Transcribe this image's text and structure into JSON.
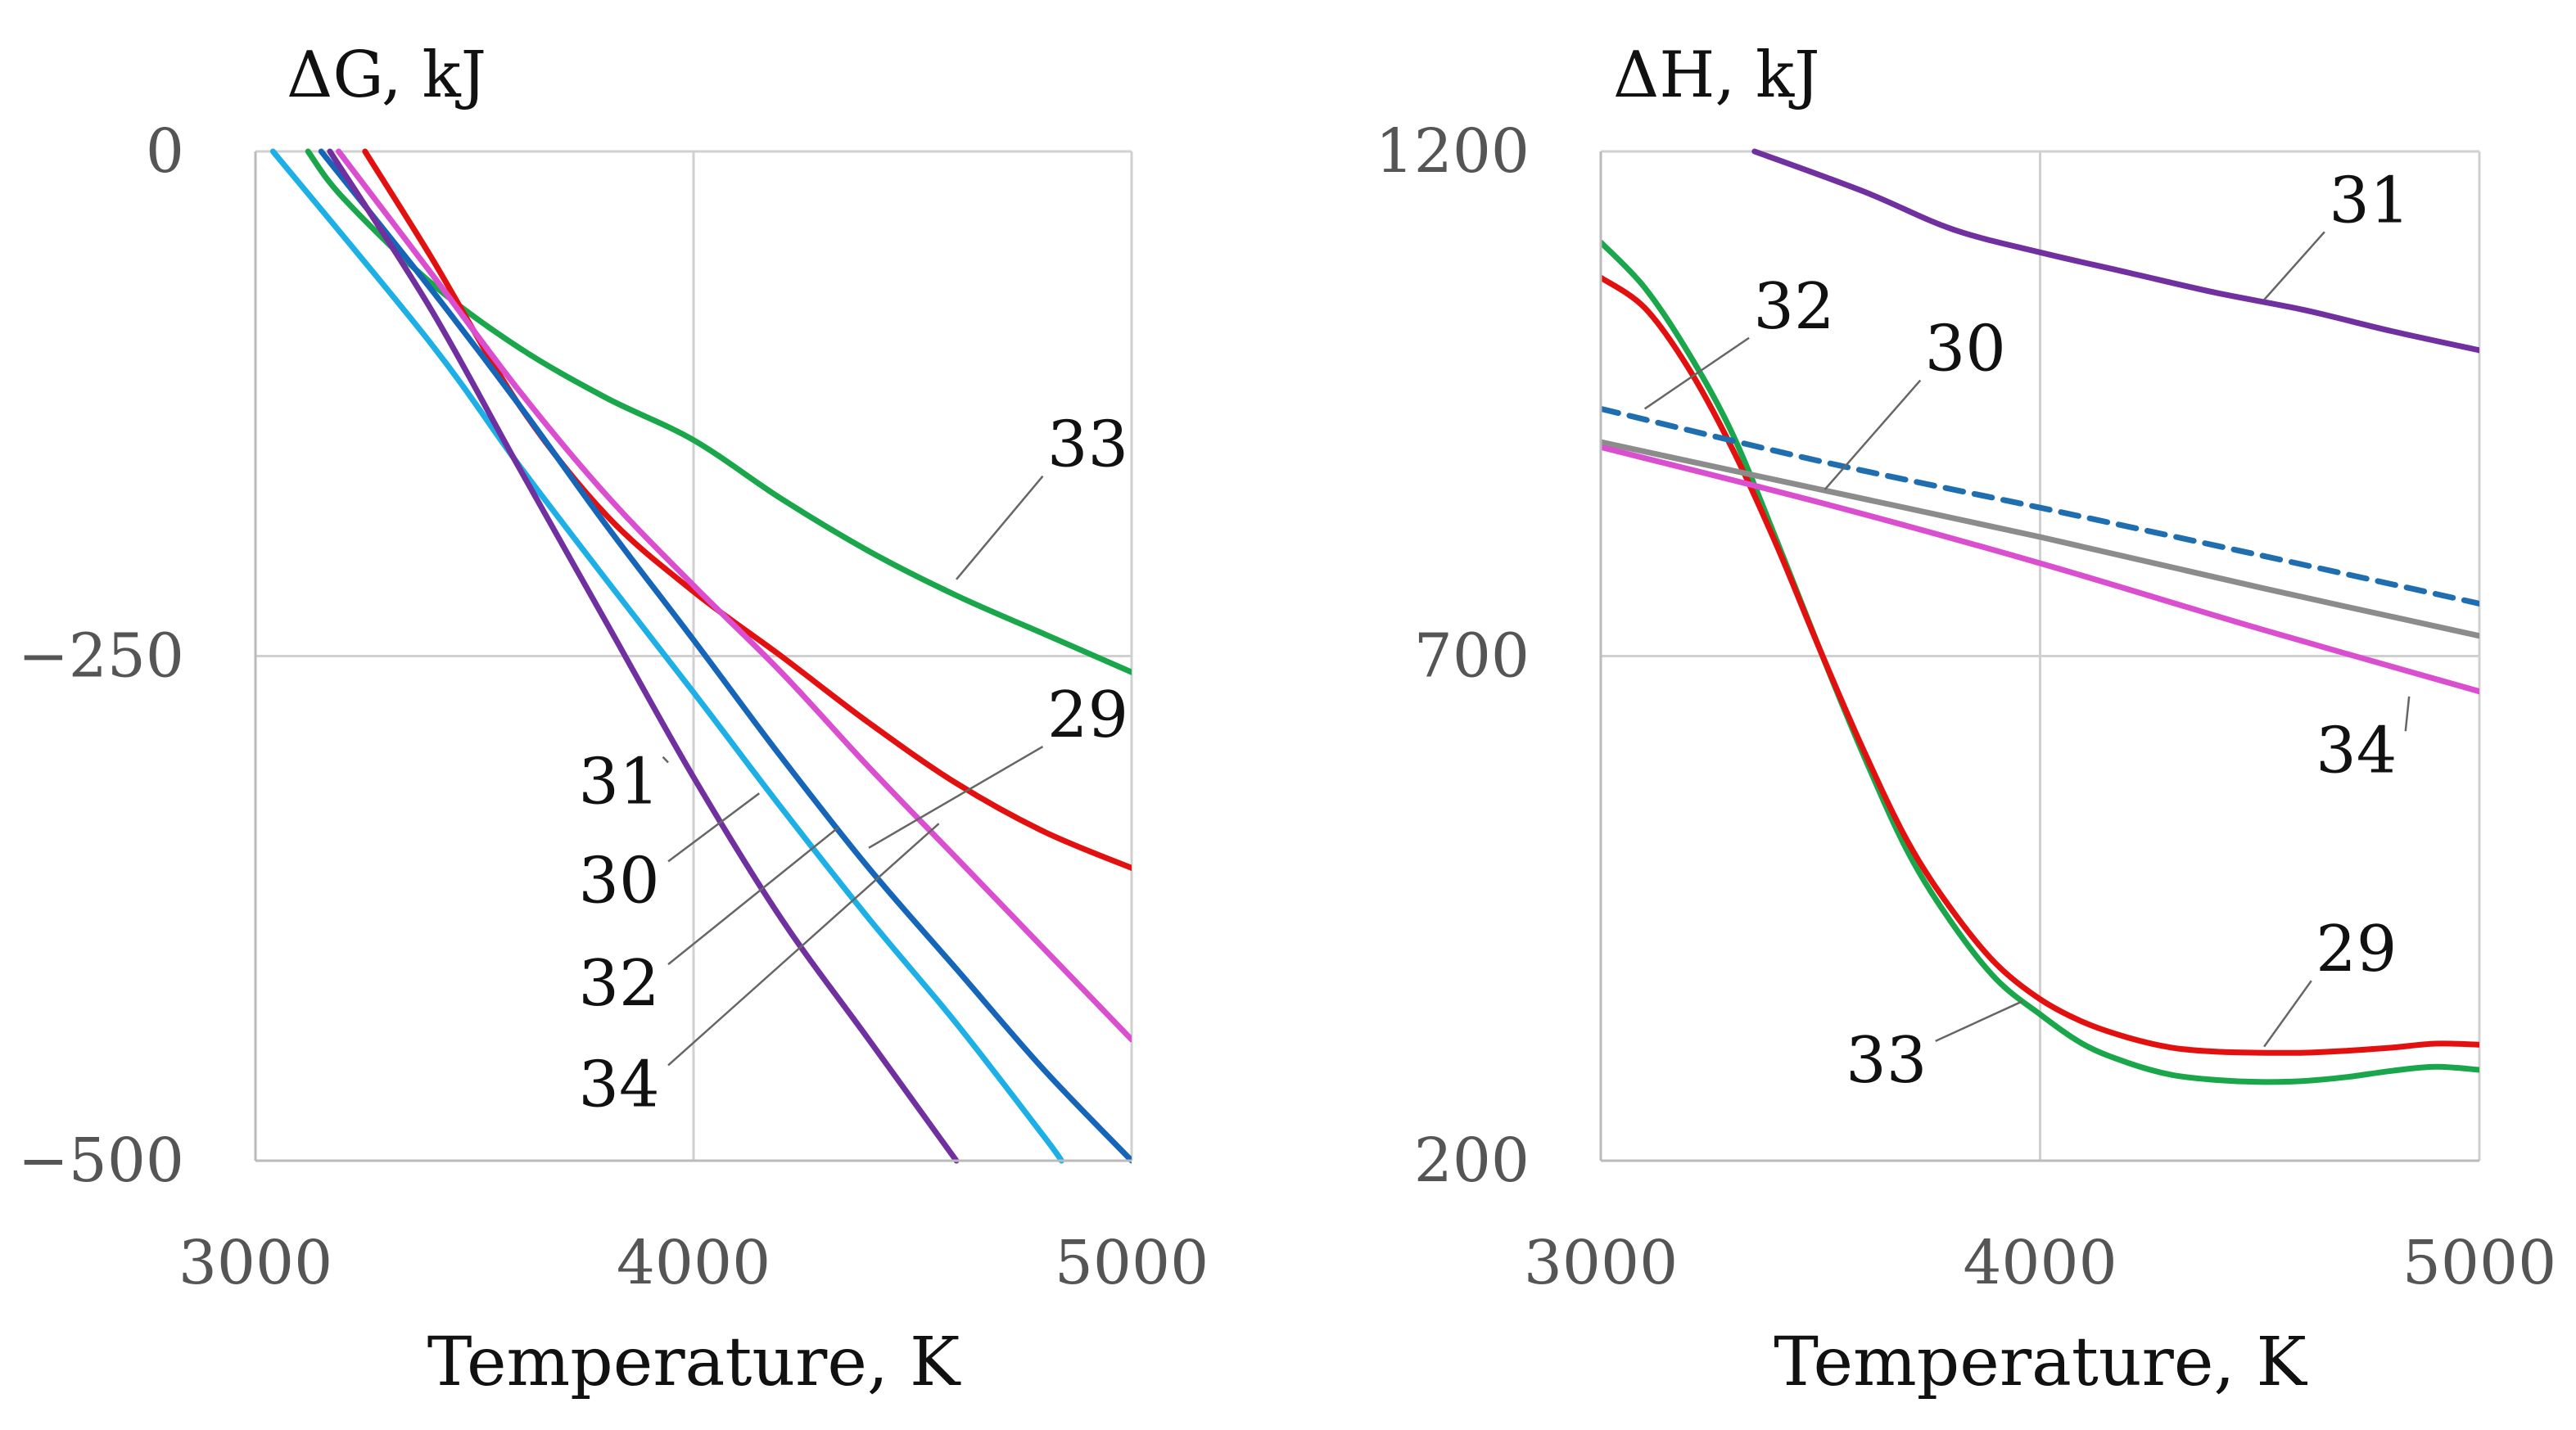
{
  "chart_data": [
    {
      "type": "line",
      "title": "ΔG, kJ",
      "xlabel": "Temperature, K",
      "ylabel": "ΔG, kJ",
      "xlim": [
        3000,
        5000
      ],
      "ylim": [
        -500,
        0
      ],
      "xticks": [
        3000,
        4000,
        5000
      ],
      "xtick_labels": [
        "3000",
        "4000",
        "5000"
      ],
      "yticks": [
        0,
        -250,
        -500
      ],
      "ytick_labels": [
        "0",
        "−250",
        "−500"
      ],
      "grid": true,
      "series": [
        {
          "name": "33",
          "color": "#1aa64a",
          "dashed": false,
          "x": [
            3120,
            3200,
            3400,
            3600,
            3800,
            4000,
            4200,
            4400,
            4600,
            4800,
            5000
          ],
          "y": [
            0,
            -23,
            -65,
            -97,
            -122,
            -143,
            -172,
            -198,
            -220,
            -239,
            -258
          ]
        },
        {
          "name": "29",
          "color": "#e31010",
          "dashed": false,
          "x": [
            3250,
            3400,
            3600,
            3800,
            4000,
            4200,
            4400,
            4600,
            4800,
            5000
          ],
          "y": [
            0,
            -52,
            -125,
            -180,
            -218,
            -250,
            -283,
            -313,
            -337,
            -355
          ]
        },
        {
          "name": "34",
          "color": "#d94fd0",
          "dashed": false,
          "x": [
            3190,
            3400,
            3600,
            3800,
            4000,
            4200,
            4400,
            4600,
            4800,
            5000
          ],
          "y": [
            0,
            -60,
            -118,
            -170,
            -215,
            -258,
            -305,
            -350,
            -395,
            -440
          ]
        },
        {
          "name": "32",
          "color": "#1565b8",
          "dashed": false,
          "x": [
            3150,
            3400,
            3600,
            3800,
            4000,
            4200,
            4400,
            4600,
            4800,
            5000
          ],
          "y": [
            0,
            -68,
            -125,
            -185,
            -242,
            -300,
            -355,
            -405,
            -455,
            -500
          ]
        },
        {
          "name": "30",
          "color": "#1cb0e6",
          "dashed": false,
          "x": [
            3040,
            3400,
            3600,
            3800,
            4000,
            4200,
            4400,
            4600,
            4800,
            4840
          ],
          "y": [
            0,
            -95,
            -155,
            -212,
            -268,
            -325,
            -380,
            -432,
            -488,
            -500
          ]
        },
        {
          "name": "31",
          "color": "#7030a0",
          "dashed": false,
          "x": [
            3170,
            3400,
            3600,
            3800,
            4000,
            4200,
            4400,
            4600
          ],
          "y": [
            0,
            -78,
            -156,
            -233,
            -310,
            -380,
            -440,
            -500
          ]
        }
      ],
      "labels": [
        {
          "text": "33",
          "x": 4900,
          "y": -156,
          "anchor_x": 4600,
          "anchor_y": -212
        },
        {
          "text": "29",
          "x": 4900,
          "y": -290,
          "anchor_x": 4400,
          "anchor_y": -345
        },
        {
          "text": "31",
          "x": 3830,
          "y": -323,
          "anchor_x": 3930,
          "anchor_y": -300
        },
        {
          "text": "30",
          "x": 3830,
          "y": -372,
          "anchor_x": 4150,
          "anchor_y": -318
        },
        {
          "text": "32",
          "x": 3830,
          "y": -423,
          "anchor_x": 4330,
          "anchor_y": -335
        },
        {
          "text": "34",
          "x": 3830,
          "y": -473,
          "anchor_x": 4560,
          "anchor_y": -333
        }
      ]
    },
    {
      "type": "line",
      "title": "ΔH, kJ",
      "xlabel": "Temperature, K",
      "ylabel": "ΔH, kJ",
      "xlim": [
        3000,
        5000
      ],
      "ylim": [
        200,
        1200
      ],
      "xticks": [
        3000,
        4000,
        5000
      ],
      "xtick_labels": [
        "3000",
        "4000",
        "5000"
      ],
      "yticks": [
        1200,
        700,
        200
      ],
      "ytick_labels": [
        "1200",
        "700",
        "200"
      ],
      "grid": true,
      "series": [
        {
          "name": "31",
          "color": "#7030a0",
          "dashed": false,
          "x": [
            3350,
            3600,
            3800,
            4000,
            4200,
            4400,
            4600,
            4800,
            5000
          ],
          "y": [
            1200,
            1160,
            1123,
            1100,
            1080,
            1060,
            1043,
            1022,
            1003
          ]
        },
        {
          "name": "33",
          "color": "#1aa64a",
          "dashed": false,
          "x": [
            3000,
            3100,
            3200,
            3300,
            3400,
            3500,
            3600,
            3700,
            3800,
            3900,
            4000,
            4100,
            4200,
            4300,
            4400,
            4500,
            4600,
            4700,
            4800,
            4900,
            5000
          ],
          "y": [
            1110,
            1065,
            1000,
            920,
            815,
            705,
            600,
            505,
            435,
            380,
            345,
            315,
            297,
            285,
            280,
            278,
            279,
            283,
            289,
            293,
            290
          ]
        },
        {
          "name": "29",
          "color": "#e31010",
          "dashed": false,
          "x": [
            3000,
            3100,
            3200,
            3300,
            3400,
            3500,
            3600,
            3700,
            3800,
            3900,
            4000,
            4100,
            4200,
            4300,
            4400,
            4500,
            4600,
            4700,
            4800,
            4900,
            5000
          ],
          "y": [
            1075,
            1045,
            985,
            905,
            810,
            705,
            605,
            515,
            448,
            395,
            360,
            337,
            322,
            312,
            308,
            307,
            307,
            309,
            312,
            316,
            315
          ]
        },
        {
          "name": "32",
          "color": "#1f6fb0",
          "dashed": true,
          "x": [
            3000,
            3500,
            4000,
            4500,
            5000
          ],
          "y": [
            945,
            893,
            847,
            800,
            752
          ]
        },
        {
          "name": "30",
          "color": "#8c8c8c",
          "dashed": false,
          "x": [
            3000,
            3500,
            4000,
            4500,
            5000
          ],
          "y": [
            912,
            865,
            818,
            768,
            720
          ]
        },
        {
          "name": "34",
          "color": "#d94fd0",
          "dashed": false,
          "x": [
            3000,
            3500,
            4000,
            4500,
            5000
          ],
          "y": [
            907,
            852,
            792,
            727,
            665
          ]
        }
      ],
      "labels": [
        {
          "text": "31",
          "x": 4750,
          "y": 1130,
          "anchor_x": 4510,
          "anchor_y": 1053
        },
        {
          "text": "32",
          "x": 3440,
          "y": 1025,
          "anchor_x": 3100,
          "anchor_y": 945
        },
        {
          "text": "30",
          "x": 3830,
          "y": 983,
          "anchor_x": 3510,
          "anchor_y": 865
        },
        {
          "text": "34",
          "x": 4720,
          "y": 585,
          "anchor_x": 4840,
          "anchor_y": 660
        },
        {
          "text": "29",
          "x": 4720,
          "y": 388,
          "anchor_x": 4510,
          "anchor_y": 313
        },
        {
          "text": "33",
          "x": 3650,
          "y": 278,
          "anchor_x": 3960,
          "anchor_y": 358
        }
      ]
    }
  ]
}
